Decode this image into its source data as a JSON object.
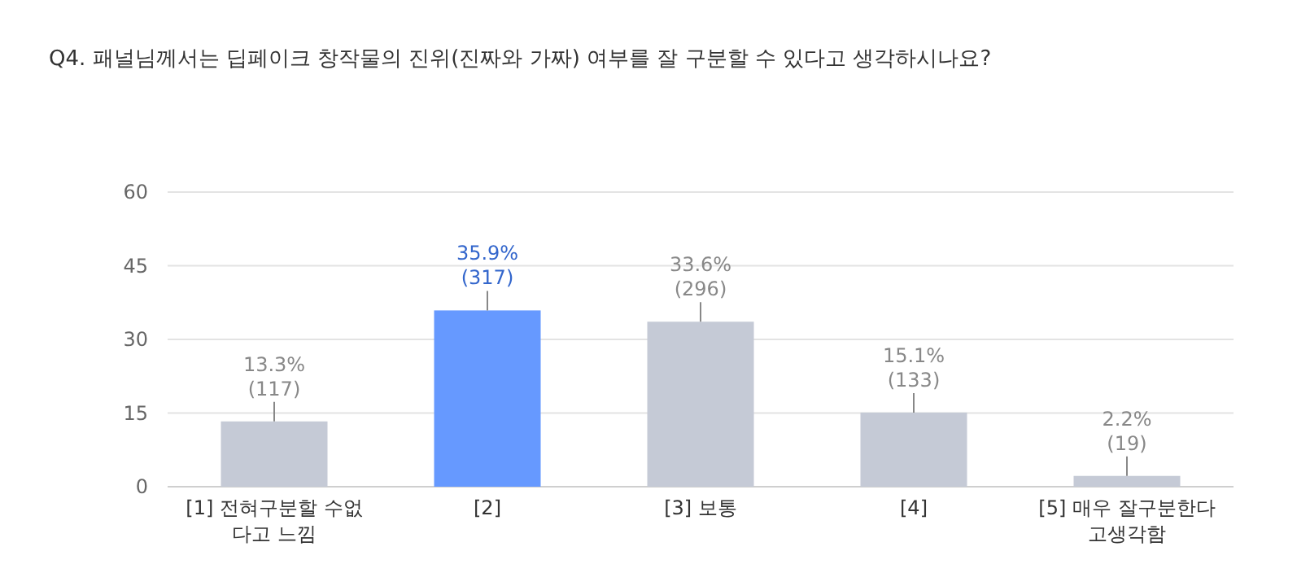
{
  "chart_data": {
    "type": "bar",
    "title": "Q4. 패널님께서는 딥페이크 창작물의 진위(진짜와 가짜) 여부를 잘 구분할 수 있다고 생각하시나요?",
    "categories": [
      "[1] 전혀구분할 수없다고 느낌",
      "[2]",
      "[3] 보통",
      "[4]",
      "[5] 매우 잘구분한다고생각함"
    ],
    "values": [
      13.3,
      35.9,
      33.6,
      15.1,
      2.2
    ],
    "colors": [
      "#c5cad6",
      "#6699ff",
      "#c5cad6",
      "#c5cad6",
      "#c5cad6"
    ],
    "value_labels": [
      "13.3% (117)",
      "35.9% (317)",
      "33.6% (296)",
      "15.1% (133)",
      "2.2% (19)"
    ],
    "ylim": [
      0,
      60
    ],
    "yticks": [
      0,
      15,
      30,
      45,
      60
    ],
    "grid": "y"
  }
}
